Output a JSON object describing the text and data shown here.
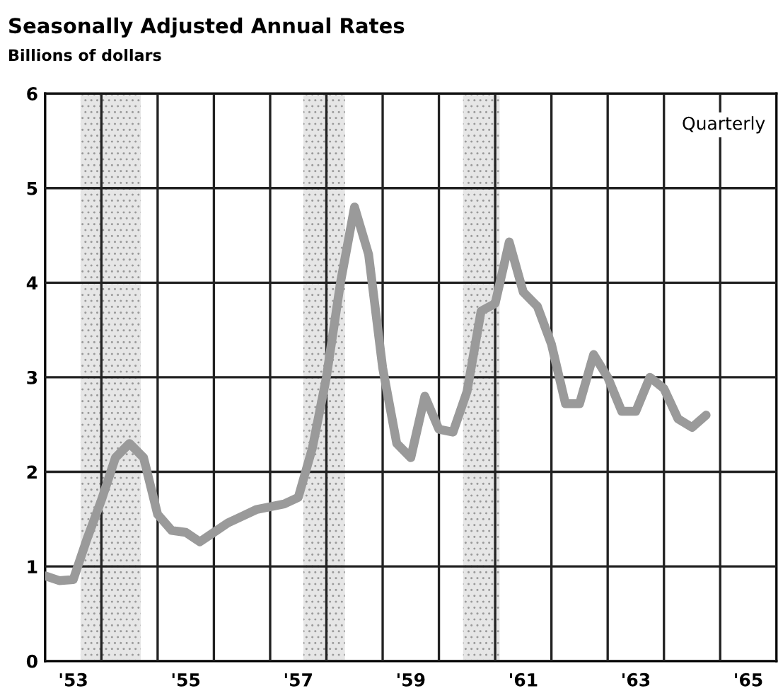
{
  "chart_data": {
    "type": "line",
    "title": "Seasonally Adjusted Annual Rates",
    "ylabel": "Billions of dollars",
    "annotations": [
      "Quarterly"
    ],
    "x": [
      1952.5,
      1952.75,
      1953.0,
      1953.25,
      1953.5,
      1953.75,
      1954.0,
      1954.25,
      1954.5,
      1954.75,
      1955.0,
      1955.25,
      1955.5,
      1955.75,
      1956.0,
      1956.25,
      1956.5,
      1956.75,
      1957.0,
      1957.25,
      1957.5,
      1957.75,
      1958.0,
      1958.25,
      1958.5,
      1958.75,
      1959.0,
      1959.25,
      1959.5,
      1959.75,
      1960.0,
      1960.25,
      1960.5,
      1960.75,
      1961.0,
      1961.25,
      1961.5,
      1961.75,
      1962.0,
      1962.25,
      1962.5,
      1962.75,
      1963.0,
      1963.25,
      1963.5,
      1963.75,
      1964.0,
      1964.25
    ],
    "series": [
      {
        "color": "#9a9a9a",
        "values": [
          0.9,
          0.85,
          0.86,
          1.3,
          1.7,
          2.15,
          2.3,
          2.15,
          1.55,
          1.38,
          1.36,
          1.26,
          1.36,
          1.46,
          1.53,
          1.6,
          1.63,
          1.66,
          1.73,
          2.25,
          3.0,
          4.0,
          4.8,
          4.3,
          3.1,
          2.3,
          2.15,
          2.8,
          2.45,
          2.42,
          2.85,
          3.7,
          3.78,
          4.43,
          3.9,
          3.75,
          3.35,
          2.72,
          2.72,
          3.24,
          3.0,
          2.64,
          2.64,
          3.0,
          2.88,
          2.56,
          2.47,
          2.6
        ]
      }
    ],
    "xlim": [
      1952.5,
      1965.5
    ],
    "xticks": [
      {
        "value": 1953,
        "label": "'53"
      },
      {
        "value": 1955,
        "label": "'55"
      },
      {
        "value": 1957,
        "label": "'57"
      },
      {
        "value": 1959,
        "label": "'59"
      },
      {
        "value": 1961,
        "label": "'61"
      },
      {
        "value": 1963,
        "label": "'63"
      },
      {
        "value": 1965,
        "label": "'65"
      },
      {
        "value": 1953.5,
        "label": null
      },
      {
        "value": 1954.5,
        "label": null
      },
      {
        "value": 1955.5,
        "label": null
      },
      {
        "value": 1956.5,
        "label": null
      },
      {
        "value": 1957.5,
        "label": null
      },
      {
        "value": 1958.5,
        "label": null
      },
      {
        "value": 1959.5,
        "label": null
      },
      {
        "value": 1960.5,
        "label": null
      },
      {
        "value": 1961.5,
        "label": null
      },
      {
        "value": 1962.5,
        "label": null
      },
      {
        "value": 1963.5,
        "label": null
      },
      {
        "value": 1964.5,
        "label": null
      }
    ],
    "ylim": [
      0,
      6
    ],
    "yticks": [
      0,
      1,
      2,
      3,
      4,
      5,
      6
    ],
    "grid": true,
    "bands": [
      {
        "axis": "x",
        "from": 1953.13,
        "to": 1954.2,
        "color": "#e6e6e6"
      },
      {
        "axis": "x",
        "from": 1957.09,
        "to": 1957.83,
        "color": "#e6e6e6"
      },
      {
        "axis": "x",
        "from": 1959.93,
        "to": 1960.58,
        "color": "#e6e6e6"
      }
    ]
  }
}
